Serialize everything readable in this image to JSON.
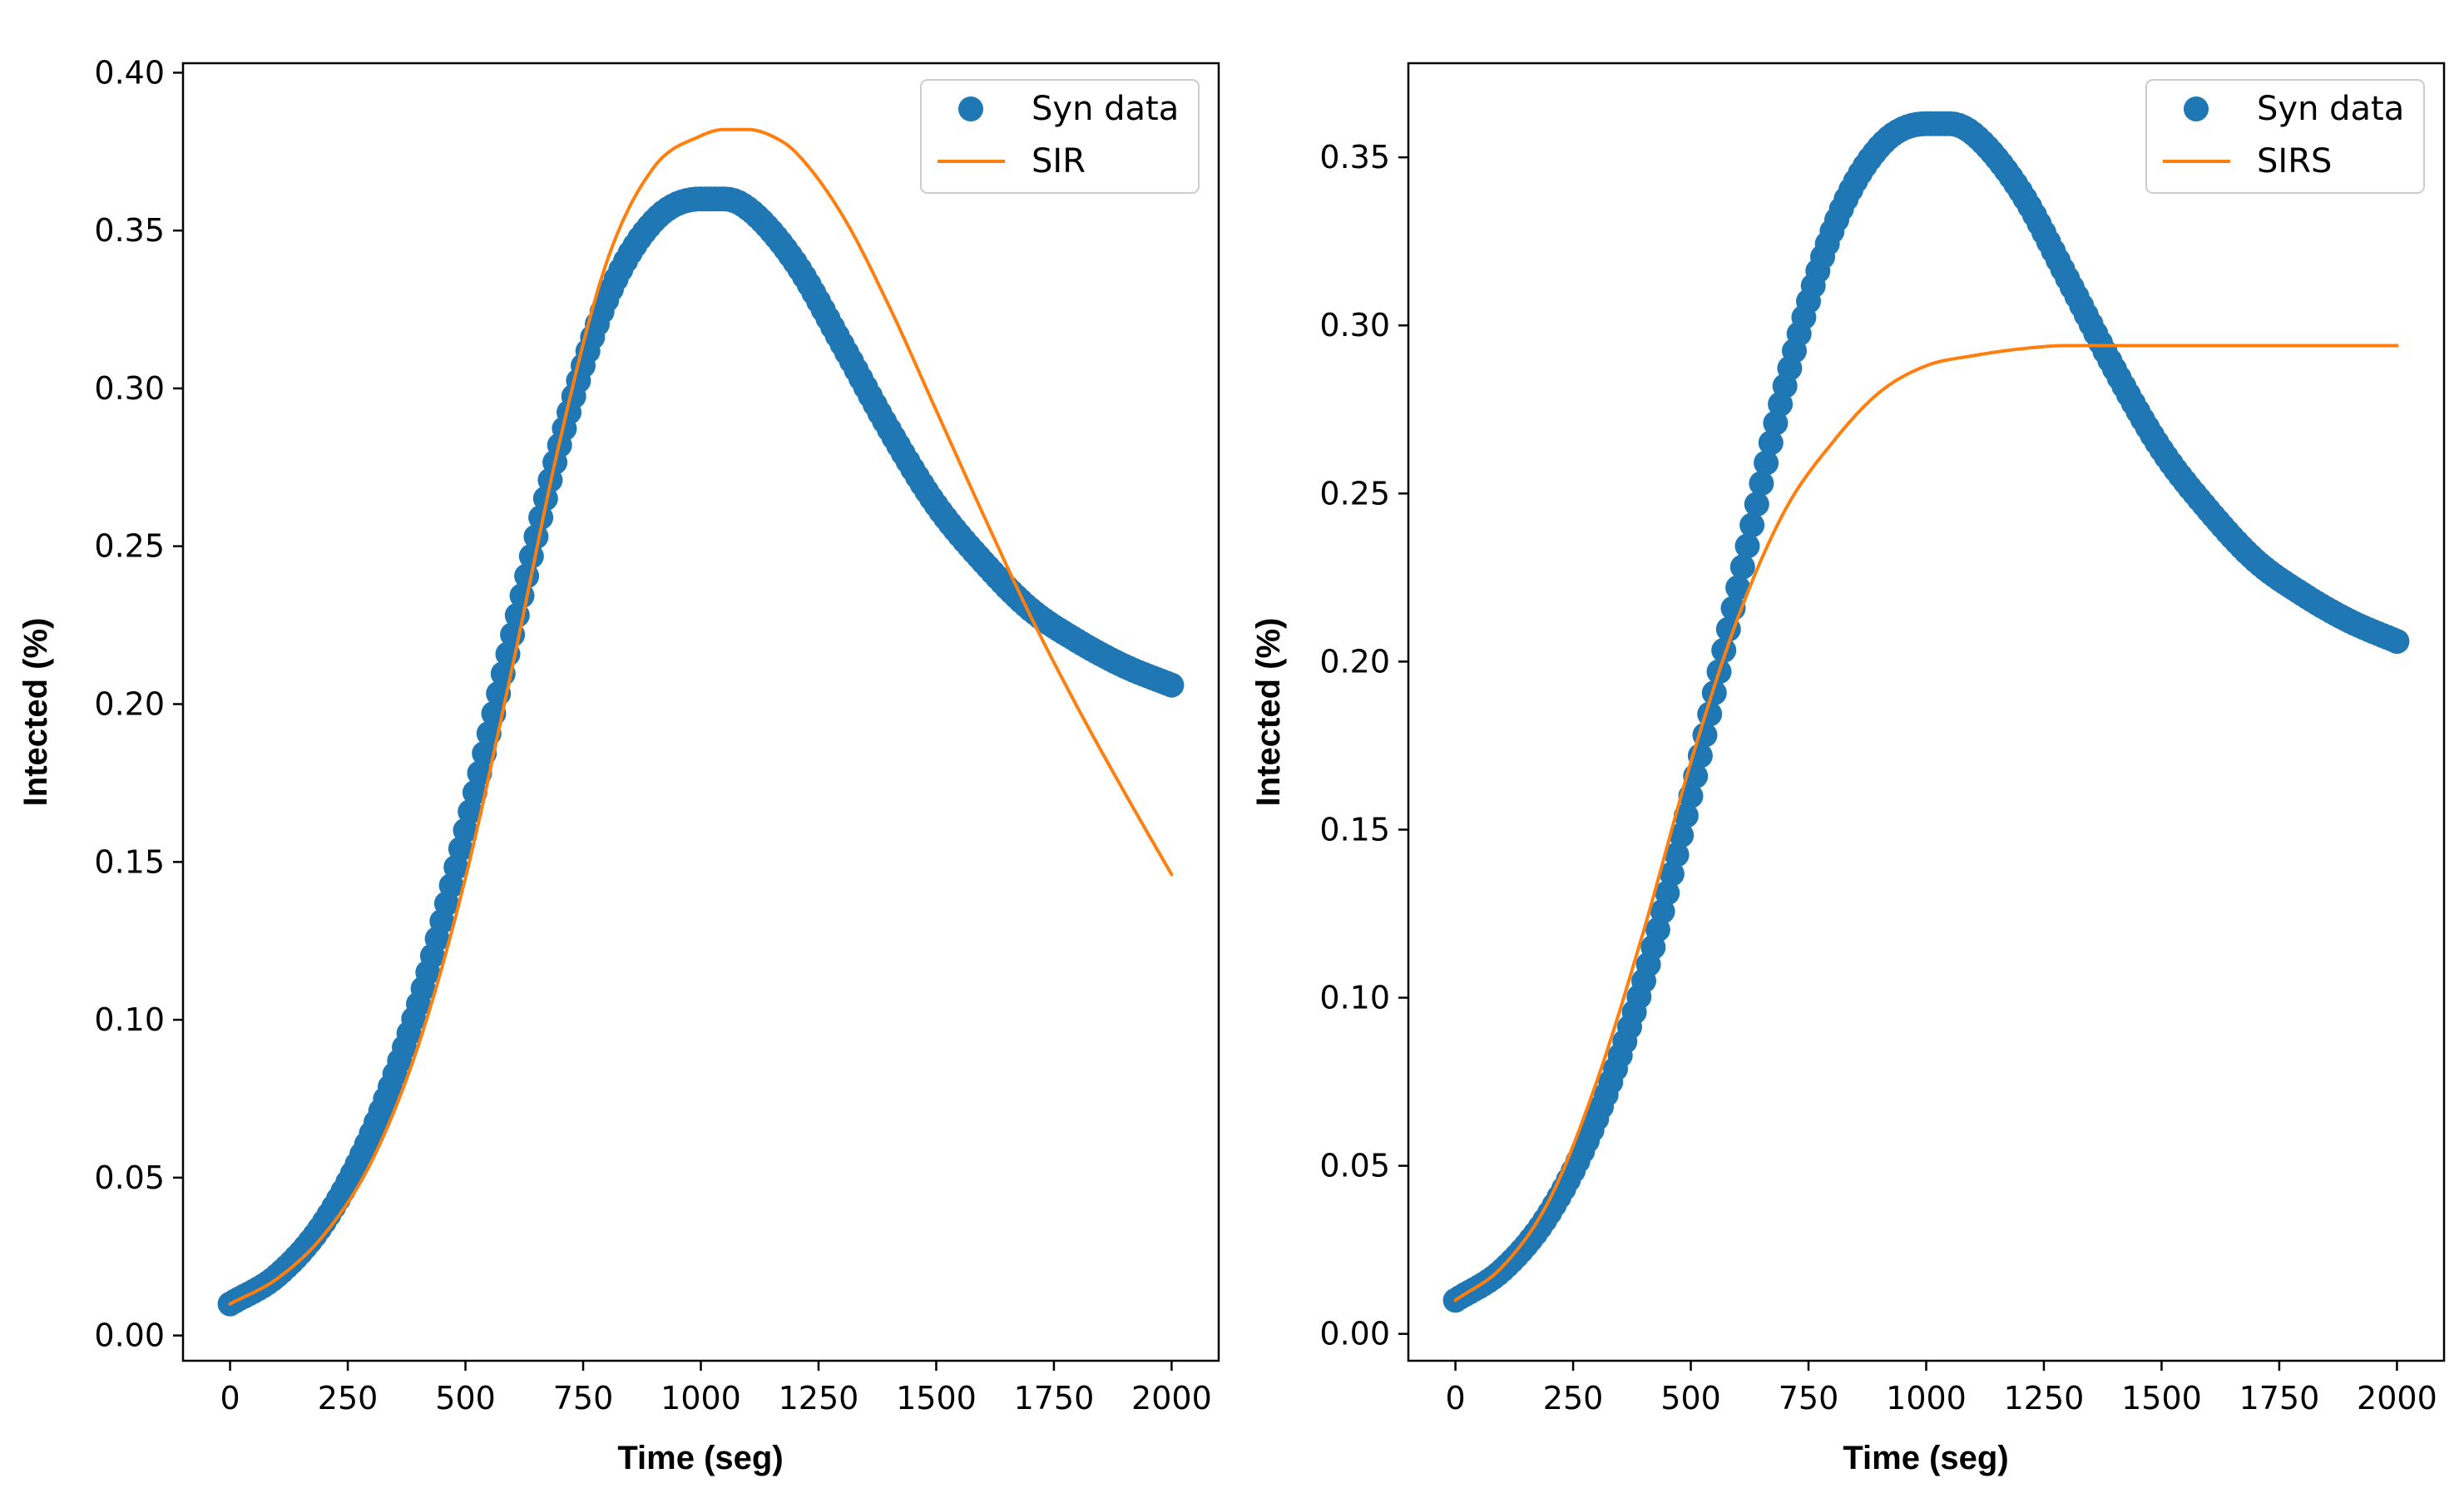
{
  "chart_data": [
    {
      "type": "line",
      "title": "",
      "xlabel": "Time (seg)",
      "ylabel": "Intected (%)",
      "xlim": [
        -100,
        2100
      ],
      "ylim": [
        -0.008,
        0.403
      ],
      "xticks": [
        0,
        250,
        500,
        750,
        1000,
        1250,
        1500,
        1750,
        2000
      ],
      "xtick_labels": [
        "0",
        "250",
        "500",
        "750",
        "1000",
        "1250",
        "1500",
        "1750",
        "2000"
      ],
      "yticks": [
        0.0,
        0.05,
        0.1,
        0.15,
        0.2,
        0.25,
        0.3,
        0.35,
        0.4
      ],
      "ytick_labels": [
        "0.00",
        "0.05",
        "0.10",
        "0.15",
        "0.20",
        "0.25",
        "0.30",
        "0.35",
        "0.40"
      ],
      "grid": false,
      "legend_position": "top-right",
      "series": [
        {
          "name": "Syn data",
          "style": "scatter",
          "color": "#1f77b4",
          "x": [
            0,
            100,
            200,
            300,
            400,
            500,
            600,
            700,
            800,
            900,
            1000,
            1050,
            1100,
            1200,
            1300,
            1400,
            1500,
            1600,
            1700,
            1800,
            1900,
            2000
          ],
          "y": [
            0.01,
            0.019,
            0.036,
            0.064,
            0.105,
            0.16,
            0.222,
            0.282,
            0.328,
            0.353,
            0.36,
            0.36,
            0.357,
            0.34,
            0.314,
            0.287,
            0.263,
            0.245,
            0.23,
            0.22,
            0.212,
            0.206
          ]
        },
        {
          "name": "SIR",
          "style": "line",
          "color": "#ff7f0e",
          "x": [
            0,
            100,
            200,
            300,
            400,
            500,
            600,
            700,
            800,
            900,
            1000,
            1050,
            1100,
            1150,
            1200,
            1300,
            1400,
            1500,
            1600,
            1700,
            1800,
            1900,
            2000
          ],
          "y": [
            0.01,
            0.018,
            0.032,
            0.055,
            0.092,
            0.145,
            0.212,
            0.283,
            0.34,
            0.37,
            0.38,
            0.382,
            0.382,
            0.38,
            0.375,
            0.355,
            0.326,
            0.293,
            0.26,
            0.228,
            0.199,
            0.172,
            0.146
          ]
        }
      ]
    },
    {
      "type": "line",
      "title": "",
      "xlabel": "Time (seg)",
      "ylabel": "Intected (%)",
      "xlim": [
        -100,
        2100
      ],
      "ylim": [
        -0.008,
        0.378
      ],
      "xticks": [
        0,
        250,
        500,
        750,
        1000,
        1250,
        1500,
        1750,
        2000
      ],
      "xtick_labels": [
        "0",
        "250",
        "500",
        "750",
        "1000",
        "1250",
        "1500",
        "1750",
        "2000"
      ],
      "yticks": [
        0.0,
        0.05,
        0.1,
        0.15,
        0.2,
        0.25,
        0.3,
        0.35
      ],
      "ytick_labels": [
        "0.00",
        "0.05",
        "0.10",
        "0.15",
        "0.20",
        "0.25",
        "0.30",
        "0.35"
      ],
      "grid": false,
      "legend_position": "top-right",
      "series": [
        {
          "name": "Syn data",
          "style": "scatter",
          "color": "#1f77b4",
          "x": [
            0,
            100,
            200,
            300,
            400,
            500,
            600,
            700,
            800,
            900,
            1000,
            1050,
            1100,
            1200,
            1300,
            1400,
            1500,
            1600,
            1700,
            1800,
            1900,
            2000
          ],
          "y": [
            0.01,
            0.019,
            0.036,
            0.064,
            0.105,
            0.16,
            0.222,
            0.282,
            0.328,
            0.353,
            0.36,
            0.36,
            0.357,
            0.34,
            0.314,
            0.287,
            0.263,
            0.245,
            0.23,
            0.22,
            0.212,
            0.206
          ]
        },
        {
          "name": "SIRS",
          "style": "line",
          "color": "#ff7f0e",
          "x": [
            0,
            100,
            200,
            300,
            400,
            500,
            600,
            700,
            800,
            900,
            1000,
            1100,
            1200,
            1300,
            1400,
            1500,
            1600,
            1700,
            1800,
            1900,
            2000
          ],
          "y": [
            0.01,
            0.02,
            0.04,
            0.075,
            0.12,
            0.17,
            0.213,
            0.245,
            0.265,
            0.28,
            0.288,
            0.291,
            0.293,
            0.294,
            0.294,
            0.294,
            0.294,
            0.294,
            0.294,
            0.294,
            0.294
          ]
        }
      ]
    }
  ]
}
